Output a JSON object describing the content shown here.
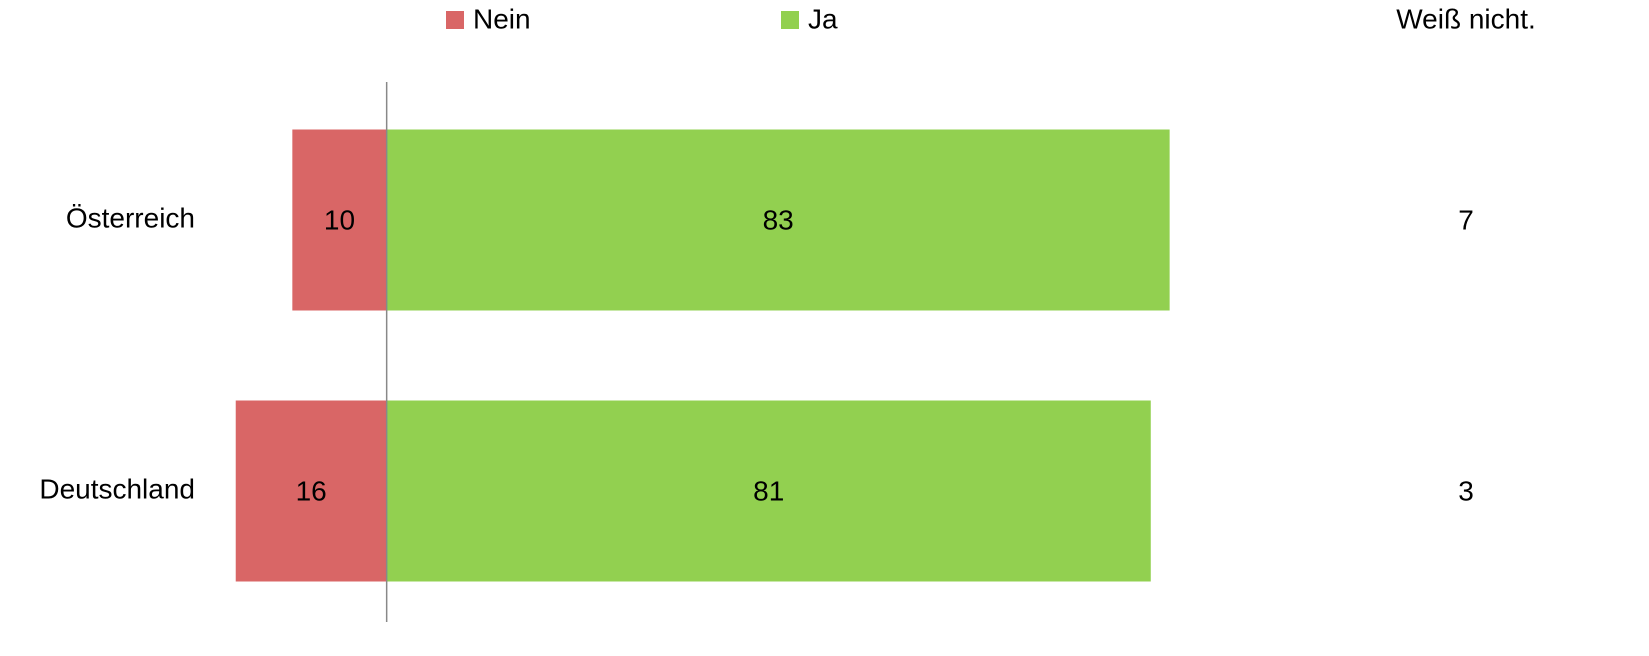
{
  "chart_data": {
    "type": "diverging-bar",
    "categories": [
      "Österreich",
      "Deutschland"
    ],
    "series": [
      {
        "name": "Nein",
        "color": "#d96666",
        "values": [
          10,
          16
        ]
      },
      {
        "name": "Ja",
        "color": "#92d050",
        "values": [
          83,
          81
        ]
      },
      {
        "name": "Weiß nicht.",
        "values": [
          7,
          3
        ]
      }
    ],
    "xlim": [
      -20,
      100
    ]
  }
}
